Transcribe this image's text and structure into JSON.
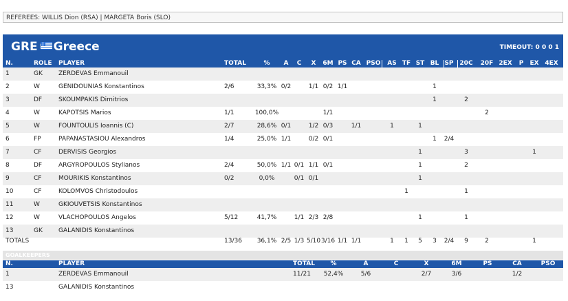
{
  "referees": "REFEREES: WILLIS Dion (RSA) | MARGETA Boris (SLO)",
  "team": {
    "code": "GRE",
    "name": "Greece",
    "flag_icon": "greece-flag-icon"
  },
  "timeout": {
    "label": "TIMEOUT:",
    "values": "0 0 0 1"
  },
  "players_columns": [
    "N.",
    "ROLE",
    "PLAYER",
    "TOTAL",
    "%",
    "A",
    "C",
    "X",
    "6M",
    "PS",
    "CA",
    "PSO",
    "AS",
    "TF",
    "ST",
    "BL",
    "SP",
    "20C",
    "20F",
    "2EX",
    "P",
    "EX",
    "4EX"
  ],
  "players": [
    {
      "n": "1",
      "role": "GK",
      "name": "ZERDEVAS Emmanouil",
      "total": "",
      "pct": "",
      "a": "",
      "c": "",
      "x": "",
      "m6": "",
      "ps": "",
      "ca": "",
      "pso": "",
      "as": "",
      "tf": "",
      "st": "",
      "bl": "",
      "sp": "",
      "c20": "",
      "f20": "",
      "ex2": "",
      "p": "",
      "ex": "",
      "ex4": ""
    },
    {
      "n": "2",
      "role": "W",
      "name": "GENIDOUNIAS Konstantinos",
      "total": "2/6",
      "pct": "33,3%",
      "a": "0/2",
      "c": "",
      "x": "1/1",
      "m6": "0/2",
      "ps": "1/1",
      "ca": "",
      "pso": "",
      "as": "",
      "tf": "",
      "st": "",
      "bl": "1",
      "sp": "",
      "c20": "",
      "f20": "",
      "ex2": "",
      "p": "",
      "ex": "",
      "ex4": ""
    },
    {
      "n": "3",
      "role": "DF",
      "name": "SKOUMPAKIS Dimitrios",
      "total": "",
      "pct": "",
      "a": "",
      "c": "",
      "x": "",
      "m6": "",
      "ps": "",
      "ca": "",
      "pso": "",
      "as": "",
      "tf": "",
      "st": "",
      "bl": "1",
      "sp": "",
      "c20": "2",
      "f20": "",
      "ex2": "",
      "p": "",
      "ex": "",
      "ex4": ""
    },
    {
      "n": "4",
      "role": "W",
      "name": "KAPOTSIS Marios",
      "total": "1/1",
      "pct": "100,0%",
      "a": "",
      "c": "",
      "x": "",
      "m6": "1/1",
      "ps": "",
      "ca": "",
      "pso": "",
      "as": "",
      "tf": "",
      "st": "",
      "bl": "",
      "sp": "",
      "c20": "",
      "f20": "2",
      "ex2": "",
      "p": "",
      "ex": "",
      "ex4": ""
    },
    {
      "n": "5",
      "role": "W",
      "name": "FOUNTOULIS Ioannis (C)",
      "total": "2/7",
      "pct": "28,6%",
      "a": "0/1",
      "c": "",
      "x": "1/2",
      "m6": "0/3",
      "ps": "",
      "ca": "1/1",
      "pso": "",
      "as": "1",
      "tf": "",
      "st": "1",
      "bl": "",
      "sp": "",
      "c20": "",
      "f20": "",
      "ex2": "",
      "p": "",
      "ex": "",
      "ex4": ""
    },
    {
      "n": "6",
      "role": "FP",
      "name": "PAPANASTASIOU Alexandros",
      "total": "1/4",
      "pct": "25,0%",
      "a": "1/1",
      "c": "",
      "x": "0/2",
      "m6": "0/1",
      "ps": "",
      "ca": "",
      "pso": "",
      "as": "",
      "tf": "",
      "st": "",
      "bl": "1",
      "sp": "2/4",
      "c20": "",
      "f20": "",
      "ex2": "",
      "p": "",
      "ex": "",
      "ex4": ""
    },
    {
      "n": "7",
      "role": "CF",
      "name": "DERVISIS Georgios",
      "total": "",
      "pct": "",
      "a": "",
      "c": "",
      "x": "",
      "m6": "",
      "ps": "",
      "ca": "",
      "pso": "",
      "as": "",
      "tf": "",
      "st": "1",
      "bl": "",
      "sp": "",
      "c20": "3",
      "f20": "",
      "ex2": "",
      "p": "",
      "ex": "1",
      "ex4": ""
    },
    {
      "n": "8",
      "role": "DF",
      "name": "ARGYROPOULOS Stylianos",
      "total": "2/4",
      "pct": "50,0%",
      "a": "1/1",
      "c": "0/1",
      "x": "1/1",
      "m6": "0/1",
      "ps": "",
      "ca": "",
      "pso": "",
      "as": "",
      "tf": "",
      "st": "1",
      "bl": "",
      "sp": "",
      "c20": "2",
      "f20": "",
      "ex2": "",
      "p": "",
      "ex": "",
      "ex4": ""
    },
    {
      "n": "9",
      "role": "CF",
      "name": "MOURIKIS Konstantinos",
      "total": "0/2",
      "pct": "0,0%",
      "a": "",
      "c": "0/1",
      "x": "0/1",
      "m6": "",
      "ps": "",
      "ca": "",
      "pso": "",
      "as": "",
      "tf": "",
      "st": "1",
      "bl": "",
      "sp": "",
      "c20": "",
      "f20": "",
      "ex2": "",
      "p": "",
      "ex": "",
      "ex4": ""
    },
    {
      "n": "10",
      "role": "CF",
      "name": "KOLOMVOS Christodoulos",
      "total": "",
      "pct": "",
      "a": "",
      "c": "",
      "x": "",
      "m6": "",
      "ps": "",
      "ca": "",
      "pso": "",
      "as": "",
      "tf": "1",
      "st": "",
      "bl": "",
      "sp": "",
      "c20": "1",
      "f20": "",
      "ex2": "",
      "p": "",
      "ex": "",
      "ex4": ""
    },
    {
      "n": "11",
      "role": "W",
      "name": "GKIOUVETSIS Konstantinos",
      "total": "",
      "pct": "",
      "a": "",
      "c": "",
      "x": "",
      "m6": "",
      "ps": "",
      "ca": "",
      "pso": "",
      "as": "",
      "tf": "",
      "st": "",
      "bl": "",
      "sp": "",
      "c20": "",
      "f20": "",
      "ex2": "",
      "p": "",
      "ex": "",
      "ex4": ""
    },
    {
      "n": "12",
      "role": "W",
      "name": "VLACHOPOULOS Angelos",
      "total": "5/12",
      "pct": "41,7%",
      "a": "",
      "c": "1/1",
      "x": "2/3",
      "m6": "2/8",
      "ps": "",
      "ca": "",
      "pso": "",
      "as": "",
      "tf": "",
      "st": "1",
      "bl": "",
      "sp": "",
      "c20": "1",
      "f20": "",
      "ex2": "",
      "p": "",
      "ex": "",
      "ex4": ""
    },
    {
      "n": "13",
      "role": "GK",
      "name": "GALANIDIS Konstantinos",
      "total": "",
      "pct": "",
      "a": "",
      "c": "",
      "x": "",
      "m6": "",
      "ps": "",
      "ca": "",
      "pso": "",
      "as": "",
      "tf": "",
      "st": "",
      "bl": "",
      "sp": "",
      "c20": "",
      "f20": "",
      "ex2": "",
      "p": "",
      "ex": "",
      "ex4": ""
    }
  ],
  "totals": {
    "label": "TOTALS",
    "total": "13/36",
    "pct": "36,1%",
    "a": "2/5",
    "c": "1/3",
    "x": "5/10",
    "m6": "3/16",
    "ps": "1/1",
    "ca": "1/1",
    "pso": "",
    "as": "1",
    "tf": "1",
    "st": "5",
    "bl": "3",
    "sp": "2/4",
    "c20": "9",
    "f20": "2",
    "ex2": "",
    "p": "",
    "ex": "1",
    "ex4": ""
  },
  "goalkeepers_title": "GOALKEEPERS",
  "gk_columns": [
    "N.",
    "PLAYER",
    "TOTAL",
    "%",
    "A",
    "C",
    "X",
    "6M",
    "PS",
    "CA",
    "PSO"
  ],
  "goalkeepers": [
    {
      "n": "1",
      "name": "ZERDEVAS Emmanouil",
      "total": "11/21",
      "pct": "52,4%",
      "a": "5/6",
      "c": "",
      "x": "2/7",
      "m6": "3/6",
      "ps": "",
      "ca": "1/2",
      "pso": ""
    },
    {
      "n": "13",
      "name": "GALANIDIS Konstantinos",
      "total": "",
      "pct": "",
      "a": "",
      "c": "",
      "x": "",
      "m6": "",
      "ps": "",
      "ca": "",
      "pso": ""
    }
  ],
  "colors": {
    "header_blue": "#1f57a8",
    "row_alt": "#eeeeee",
    "gk_band": "#e4e4e4"
  }
}
